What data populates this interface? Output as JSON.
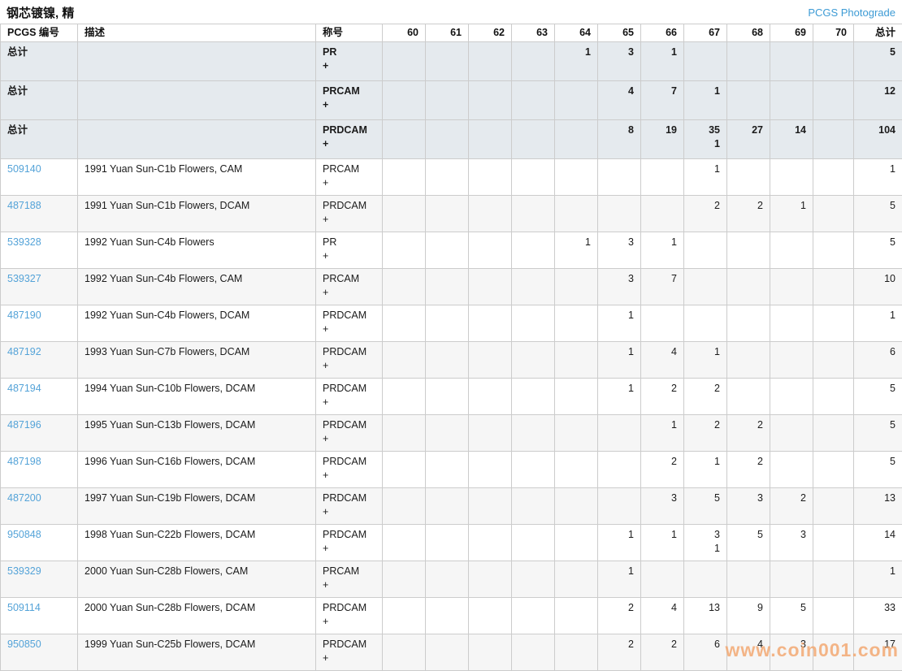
{
  "page": {
    "title": "钢芯镀镍, 精",
    "photograde_link": "PCGS Photograde",
    "watermark": "www.coin001.com"
  },
  "colors": {
    "link_blue": "#54a3d8",
    "total_row_bg": "#e5eaee",
    "alt_row_bg": "#f6f6f6",
    "border": "#cccccc",
    "watermark_orange": "#f2a46a"
  },
  "table": {
    "columns": [
      "PCGS 编号",
      "描述",
      "称号",
      "60",
      "61",
      "62",
      "63",
      "64",
      "65",
      "66",
      "67",
      "68",
      "69",
      "70",
      "总计"
    ],
    "grade_keys": [
      "60",
      "61",
      "62",
      "63",
      "64",
      "65",
      "66",
      "67",
      "68",
      "69",
      "70",
      "total"
    ],
    "rows": [
      {
        "type": "total",
        "label": "总计",
        "desc": "",
        "designation": "PR",
        "designation_plus": "+",
        "values": [
          "",
          "",
          "",
          "",
          "1",
          "3",
          "1",
          "",
          "",
          "",
          "",
          "5"
        ],
        "plus": [
          "",
          "",
          "",
          "",
          "",
          "",
          "",
          "",
          "",
          "",
          "",
          ""
        ]
      },
      {
        "type": "total",
        "label": "总计",
        "desc": "",
        "designation": "PRCAM",
        "designation_plus": "+",
        "values": [
          "",
          "",
          "",
          "",
          "",
          "4",
          "7",
          "1",
          "",
          "",
          "",
          "12"
        ],
        "plus": [
          "",
          "",
          "",
          "",
          "",
          "",
          "",
          "",
          "",
          "",
          "",
          ""
        ]
      },
      {
        "type": "total",
        "label": "总计",
        "desc": "",
        "designation": "PRDCAM",
        "designation_plus": "+",
        "values": [
          "",
          "",
          "",
          "",
          "",
          "8",
          "19",
          "35",
          "27",
          "14",
          "",
          "104"
        ],
        "plus": [
          "",
          "",
          "",
          "",
          "",
          "",
          "",
          "1",
          "",
          "",
          "",
          ""
        ]
      },
      {
        "type": "data",
        "pcgs": "509140",
        "desc": "1991 Yuan Sun-C1b Flowers, CAM",
        "designation": "PRCAM",
        "designation_plus": "+",
        "values": [
          "",
          "",
          "",
          "",
          "",
          "",
          "",
          "1",
          "",
          "",
          "",
          "1"
        ],
        "plus": [
          "",
          "",
          "",
          "",
          "",
          "",
          "",
          "",
          "",
          "",
          "",
          ""
        ]
      },
      {
        "type": "data",
        "pcgs": "487188",
        "desc": "1991 Yuan Sun-C1b Flowers, DCAM",
        "designation": "PRDCAM",
        "designation_plus": "+",
        "values": [
          "",
          "",
          "",
          "",
          "",
          "",
          "",
          "2",
          "2",
          "1",
          "",
          "5"
        ],
        "plus": [
          "",
          "",
          "",
          "",
          "",
          "",
          "",
          "",
          "",
          "",
          "",
          ""
        ]
      },
      {
        "type": "data",
        "pcgs": "539328",
        "desc": "1992 Yuan Sun-C4b Flowers",
        "designation": "PR",
        "designation_plus": "+",
        "values": [
          "",
          "",
          "",
          "",
          "1",
          "3",
          "1",
          "",
          "",
          "",
          "",
          "5"
        ],
        "plus": [
          "",
          "",
          "",
          "",
          "",
          "",
          "",
          "",
          "",
          "",
          "",
          ""
        ]
      },
      {
        "type": "data",
        "pcgs": "539327",
        "desc": "1992 Yuan Sun-C4b Flowers, CAM",
        "designation": "PRCAM",
        "designation_plus": "+",
        "values": [
          "",
          "",
          "",
          "",
          "",
          "3",
          "7",
          "",
          "",
          "",
          "",
          "10"
        ],
        "plus": [
          "",
          "",
          "",
          "",
          "",
          "",
          "",
          "",
          "",
          "",
          "",
          ""
        ]
      },
      {
        "type": "data",
        "pcgs": "487190",
        "desc": "1992 Yuan Sun-C4b Flowers, DCAM",
        "designation": "PRDCAM",
        "designation_plus": "+",
        "values": [
          "",
          "",
          "",
          "",
          "",
          "1",
          "",
          "",
          "",
          "",
          "",
          "1"
        ],
        "plus": [
          "",
          "",
          "",
          "",
          "",
          "",
          "",
          "",
          "",
          "",
          "",
          ""
        ]
      },
      {
        "type": "data",
        "pcgs": "487192",
        "desc": "1993 Yuan Sun-C7b Flowers, DCAM",
        "designation": "PRDCAM",
        "designation_plus": "+",
        "values": [
          "",
          "",
          "",
          "",
          "",
          "1",
          "4",
          "1",
          "",
          "",
          "",
          "6"
        ],
        "plus": [
          "",
          "",
          "",
          "",
          "",
          "",
          "",
          "",
          "",
          "",
          "",
          ""
        ]
      },
      {
        "type": "data",
        "pcgs": "487194",
        "desc": "1994 Yuan Sun-C10b Flowers, DCAM",
        "designation": "PRDCAM",
        "designation_plus": "+",
        "values": [
          "",
          "",
          "",
          "",
          "",
          "1",
          "2",
          "2",
          "",
          "",
          "",
          "5"
        ],
        "plus": [
          "",
          "",
          "",
          "",
          "",
          "",
          "",
          "",
          "",
          "",
          "",
          ""
        ]
      },
      {
        "type": "data",
        "pcgs": "487196",
        "desc": "1995 Yuan Sun-C13b Flowers, DCAM",
        "designation": "PRDCAM",
        "designation_plus": "+",
        "values": [
          "",
          "",
          "",
          "",
          "",
          "",
          "1",
          "2",
          "2",
          "",
          "",
          "5"
        ],
        "plus": [
          "",
          "",
          "",
          "",
          "",
          "",
          "",
          "",
          "",
          "",
          "",
          ""
        ]
      },
      {
        "type": "data",
        "pcgs": "487198",
        "desc": "1996 Yuan Sun-C16b Flowers, DCAM",
        "designation": "PRDCAM",
        "designation_plus": "+",
        "values": [
          "",
          "",
          "",
          "",
          "",
          "",
          "2",
          "1",
          "2",
          "",
          "",
          "5"
        ],
        "plus": [
          "",
          "",
          "",
          "",
          "",
          "",
          "",
          "",
          "",
          "",
          "",
          ""
        ]
      },
      {
        "type": "data",
        "pcgs": "487200",
        "desc": "1997 Yuan Sun-C19b Flowers, DCAM",
        "designation": "PRDCAM",
        "designation_plus": "+",
        "values": [
          "",
          "",
          "",
          "",
          "",
          "",
          "3",
          "5",
          "3",
          "2",
          "",
          "13"
        ],
        "plus": [
          "",
          "",
          "",
          "",
          "",
          "",
          "",
          "",
          "",
          "",
          "",
          ""
        ]
      },
      {
        "type": "data",
        "pcgs": "950848",
        "desc": "1998 Yuan Sun-C22b Flowers, DCAM",
        "designation": "PRDCAM",
        "designation_plus": "+",
        "values": [
          "",
          "",
          "",
          "",
          "",
          "1",
          "1",
          "3",
          "5",
          "3",
          "",
          "14"
        ],
        "plus": [
          "",
          "",
          "",
          "",
          "",
          "",
          "",
          "1",
          "",
          "",
          "",
          ""
        ]
      },
      {
        "type": "data",
        "pcgs": "539329",
        "desc": "2000 Yuan Sun-C28b Flowers, CAM",
        "designation": "PRCAM",
        "designation_plus": "+",
        "values": [
          "",
          "",
          "",
          "",
          "",
          "1",
          "",
          "",
          "",
          "",
          "",
          "1"
        ],
        "plus": [
          "",
          "",
          "",
          "",
          "",
          "",
          "",
          "",
          "",
          "",
          "",
          ""
        ]
      },
      {
        "type": "data",
        "pcgs": "509114",
        "desc": "2000 Yuan Sun-C28b Flowers, DCAM",
        "designation": "PRDCAM",
        "designation_plus": "+",
        "values": [
          "",
          "",
          "",
          "",
          "",
          "2",
          "4",
          "13",
          "9",
          "5",
          "",
          "33"
        ],
        "plus": [
          "",
          "",
          "",
          "",
          "",
          "",
          "",
          "",
          "",
          "",
          "",
          ""
        ]
      },
      {
        "type": "data",
        "pcgs": "950850",
        "desc": "1999 Yuan Sun-C25b Flowers, DCAM",
        "designation": "PRDCAM",
        "designation_plus": "+",
        "values": [
          "",
          "",
          "",
          "",
          "",
          "2",
          "2",
          "6",
          "4",
          "3",
          "",
          "17"
        ],
        "plus": [
          "",
          "",
          "",
          "",
          "",
          "",
          "",
          "",
          "",
          "",
          "",
          ""
        ]
      }
    ]
  }
}
